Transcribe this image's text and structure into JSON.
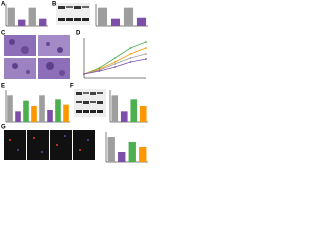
{
  "panels": [
    {
      "label": "A",
      "ylim": [
        0,
        1.2
      ],
      "bars": [
        1.0,
        0.35,
        1.0,
        0.4
      ],
      "colors": [
        "#9e9e9e",
        "#7d4fa8",
        "#9e9e9e",
        "#7d4fa8"
      ]
    },
    {
      "label": "B",
      "ylim": [
        0,
        1.2
      ],
      "bars": [
        1.0,
        0.4,
        1.0,
        0.45
      ],
      "colors": [
        "#9e9e9e",
        "#7d4fa8",
        "#9e9e9e",
        "#7d4fa8"
      ]
    },
    {
      "label": "C"
    },
    {
      "label": "D",
      "ylim": [
        0,
        2
      ],
      "lines": [
        {
          "color": "#4caf50",
          "values": [
            0.2,
            0.5,
            1.0,
            1.5,
            1.8
          ]
        },
        {
          "color": "#ff9800",
          "values": [
            0.2,
            0.45,
            0.8,
            1.2,
            1.5
          ]
        },
        {
          "color": "#9e9e9e",
          "values": [
            0.2,
            0.4,
            0.7,
            1.0,
            1.2
          ]
        },
        {
          "color": "#7d4fa8",
          "values": [
            0.2,
            0.35,
            0.55,
            0.8,
            0.95
          ]
        }
      ]
    },
    {
      "label": "E",
      "ylim": [
        0,
        1.2
      ],
      "bars": [
        1.0,
        0.4,
        0.8,
        0.6,
        1.0,
        0.45,
        0.85,
        0.65
      ],
      "colors": [
        "#9e9e9e",
        "#7d4fa8",
        "#4caf50",
        "#ff9800",
        "#9e9e9e",
        "#7d4fa8",
        "#4caf50",
        "#ff9800"
      ]
    },
    {
      "label": "F",
      "ylim": [
        0,
        1.2
      ],
      "bars": [
        1.0,
        0.4,
        0.85,
        0.6
      ],
      "colors": [
        "#9e9e9e",
        "#7d4fa8",
        "#4caf50",
        "#ff9800"
      ]
    },
    {
      "label": "G",
      "ylim": [
        0,
        1.2
      ],
      "bars": [
        1.0,
        0.4,
        0.8,
        0.6
      ],
      "colors": [
        "#9e9e9e",
        "#7d4fa8",
        "#4caf50",
        "#ff9800"
      ]
    }
  ]
}
